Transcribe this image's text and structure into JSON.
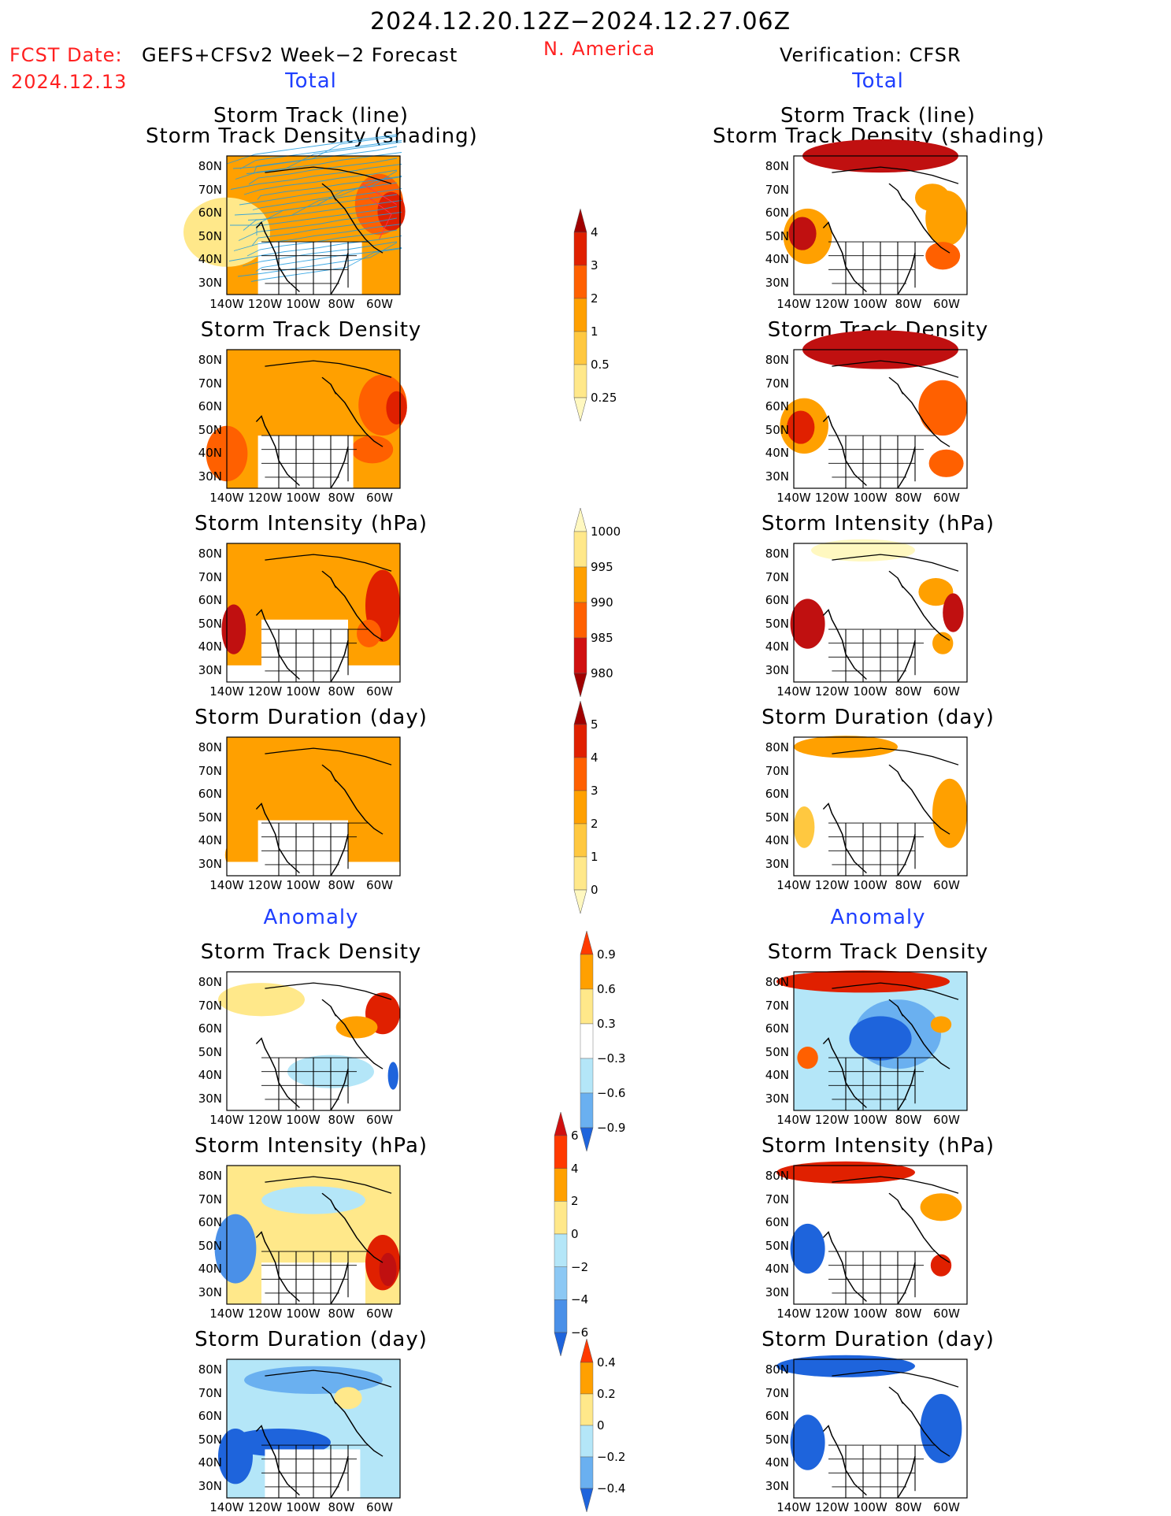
{
  "header": {
    "period": "2024.12.20.12Z−2024.12.27.06Z",
    "fcst_label": "FCST Date:",
    "forecast_name": "GEFS+CFSv2 Week−2 Forecast",
    "fcst_date": "2024.12.13",
    "region": "N. America",
    "verification": "Verification: CFSR"
  },
  "sections": {
    "total_left": "Total",
    "total_right": "Total",
    "anomaly_left": "Anomaly",
    "anomaly_right": "Anomaly"
  },
  "titles": {
    "track_line": "Storm Track (line)",
    "track_shading": "Storm Track Density (shading)",
    "density": "Storm Track Density",
    "intensity": "Storm Intensity (hPa)",
    "duration": "Storm Duration (day)"
  },
  "axes": {
    "lat_labels": [
      "80N",
      "70N",
      "60N",
      "50N",
      "40N",
      "30N"
    ],
    "lon_labels": [
      "140W",
      "120W",
      "100W",
      "80W",
      "60W"
    ]
  },
  "colorbars": {
    "density_total": {
      "labels": [
        "4",
        "3",
        "2",
        "1",
        "0.5",
        "0.25"
      ],
      "colors": [
        "#a00000",
        "#e02000",
        "#ff6000",
        "#ffa000",
        "#ffc840",
        "#ffe88a",
        "#fff8c0"
      ]
    },
    "intensity_total": {
      "labels": [
        "1000",
        "995",
        "990",
        "985",
        "980"
      ],
      "colors": [
        "#fff8c0",
        "#ffe88a",
        "#ffa000",
        "#ff6000",
        "#d01010",
        "#a00000"
      ]
    },
    "duration_total": {
      "labels": [
        "5",
        "4",
        "3",
        "2",
        "1",
        "0"
      ],
      "colors": [
        "#a00000",
        "#e02000",
        "#ff6000",
        "#ffa000",
        "#ffc840",
        "#ffe88a",
        "#fff8c0"
      ]
    },
    "density_anom": {
      "labels": [
        "0.9",
        "0.6",
        "0.3",
        "−0.3",
        "−0.6",
        "−0.9"
      ],
      "colors": [
        "#ff3a00",
        "#ffa000",
        "#ffe88a",
        "#ffffff",
        "#b4e6f8",
        "#6ab0f0",
        "#1e64dc"
      ]
    },
    "intensity_anom": {
      "labels": [
        "6",
        "4",
        "2",
        "0",
        "−2",
        "−4",
        "−6"
      ],
      "colors": [
        "#d01010",
        "#ff3a00",
        "#ffa000",
        "#ffe88a",
        "#b4e6f8",
        "#8cc8f4",
        "#4a90e8",
        "#1e64dc"
      ]
    },
    "duration_anom": {
      "labels": [
        "0.4",
        "0.2",
        "0",
        "−0.2",
        "−0.4"
      ],
      "colors": [
        "#ff3a00",
        "#ffa000",
        "#ffe88a",
        "#b4e6f8",
        "#6ab0f0",
        "#1e64dc"
      ]
    }
  }
}
